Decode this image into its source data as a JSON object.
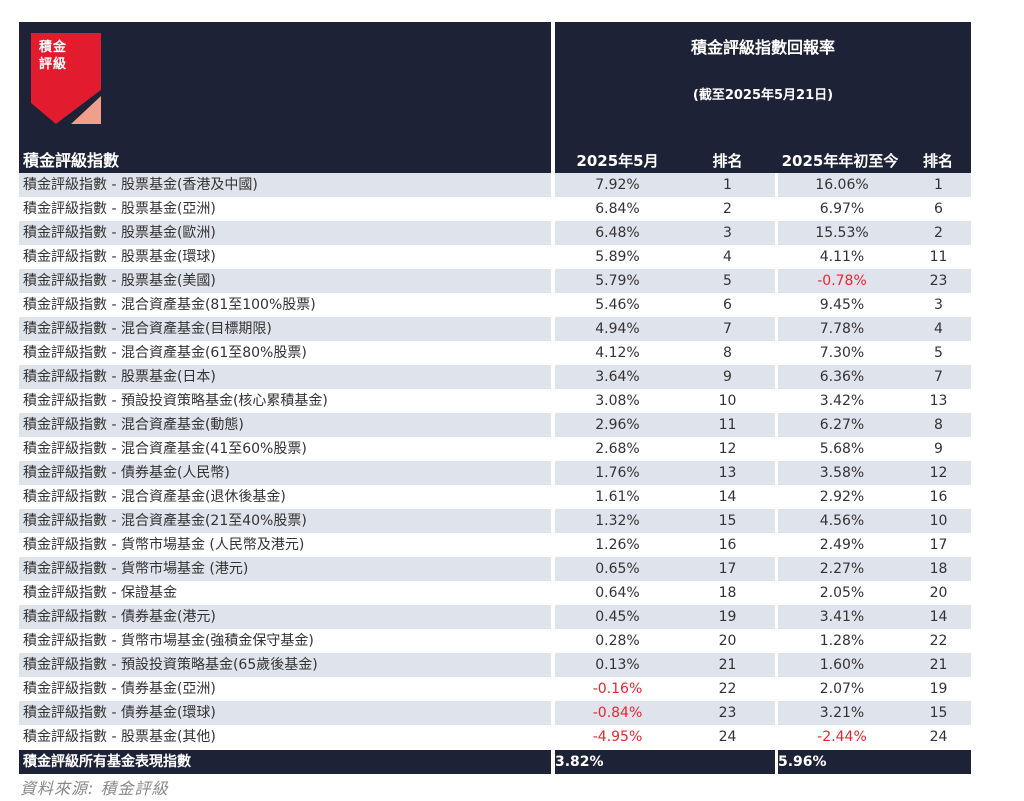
{
  "header": {
    "logo_text_line1": "積金",
    "logo_text_line2": "評級",
    "left_title": "積金評級指數",
    "right_title": "積金評級指數回報率",
    "right_subtitle": "(截至2025年5月21日)",
    "columns": [
      "2025年5月",
      "排名",
      "2025年年初至今",
      "排名"
    ]
  },
  "colors": {
    "header_bg": "#1e2236",
    "row_alt": "#dfe3ec",
    "negative": "#e8262f",
    "logo_red": "#e31b2f",
    "logo_salmon": "#f0a08a"
  },
  "rows": [
    {
      "name": "積金評級指數 - 股票基金(香港及中國)",
      "may": "7.92%",
      "may_rank": "1",
      "ytd": "16.06%",
      "ytd_rank": "1"
    },
    {
      "name": "積金評級指數 - 股票基金(亞洲)",
      "may": "6.84%",
      "may_rank": "2",
      "ytd": "6.97%",
      "ytd_rank": "6"
    },
    {
      "name": "積金評級指數 - 股票基金(歐洲)",
      "may": "6.48%",
      "may_rank": "3",
      "ytd": "15.53%",
      "ytd_rank": "2"
    },
    {
      "name": "積金評級指數 - 股票基金(環球)",
      "may": "5.89%",
      "may_rank": "4",
      "ytd": "4.11%",
      "ytd_rank": "11"
    },
    {
      "name": "積金評級指數 - 股票基金(美國)",
      "may": "5.79%",
      "may_rank": "5",
      "ytd": "-0.78%",
      "ytd_rank": "23"
    },
    {
      "name": "積金評級指數 - 混合資產基金(81至100%股票)",
      "may": "5.46%",
      "may_rank": "6",
      "ytd": "9.45%",
      "ytd_rank": "3"
    },
    {
      "name": "積金評級指數 - 混合資產基金(目標期限)",
      "may": "4.94%",
      "may_rank": "7",
      "ytd": "7.78%",
      "ytd_rank": "4"
    },
    {
      "name": "積金評級指數 - 混合資產基金(61至80%股票)",
      "may": "4.12%",
      "may_rank": "8",
      "ytd": "7.30%",
      "ytd_rank": "5"
    },
    {
      "name": "積金評級指數 - 股票基金(日本)",
      "may": "3.64%",
      "may_rank": "9",
      "ytd": "6.36%",
      "ytd_rank": "7"
    },
    {
      "name": "積金評級指數 - 預設投資策略基金(核心累積基金)",
      "may": "3.08%",
      "may_rank": "10",
      "ytd": "3.42%",
      "ytd_rank": "13"
    },
    {
      "name": "積金評級指數 - 混合資產基金(動態)",
      "may": "2.96%",
      "may_rank": "11",
      "ytd": "6.27%",
      "ytd_rank": "8"
    },
    {
      "name": "積金評級指數 - 混合資產基金(41至60%股票)",
      "may": "2.68%",
      "may_rank": "12",
      "ytd": "5.68%",
      "ytd_rank": "9"
    },
    {
      "name": "積金評級指數 - 債券基金(人民幣)",
      "may": "1.76%",
      "may_rank": "13",
      "ytd": "3.58%",
      "ytd_rank": "12"
    },
    {
      "name": "積金評級指數 - 混合資產基金(退休後基金)",
      "may": "1.61%",
      "may_rank": "14",
      "ytd": "2.92%",
      "ytd_rank": "16"
    },
    {
      "name": "積金評級指數 - 混合資產基金(21至40%股票)",
      "may": "1.32%",
      "may_rank": "15",
      "ytd": "4.56%",
      "ytd_rank": "10"
    },
    {
      "name": "積金評級指數 - 貨幣市場基金 (人民幣及港元)",
      "may": "1.26%",
      "may_rank": "16",
      "ytd": "2.49%",
      "ytd_rank": "17"
    },
    {
      "name": "積金評級指數 - 貨幣市場基金 (港元)",
      "may": "0.65%",
      "may_rank": "17",
      "ytd": "2.27%",
      "ytd_rank": "18"
    },
    {
      "name": "積金評級指數 - 保證基金",
      "may": "0.64%",
      "may_rank": "18",
      "ytd": "2.05%",
      "ytd_rank": "20"
    },
    {
      "name": "積金評級指數 - 債券基金(港元)",
      "may": "0.45%",
      "may_rank": "19",
      "ytd": "3.41%",
      "ytd_rank": "14"
    },
    {
      "name": "積金評級指數 - 貨幣市場基金(強積金保守基金)",
      "may": "0.28%",
      "may_rank": "20",
      "ytd": "1.28%",
      "ytd_rank": "22"
    },
    {
      "name": "積金評級指數 - 預設投資策略基金(65歲後基金)",
      "may": "0.13%",
      "may_rank": "21",
      "ytd": "1.60%",
      "ytd_rank": "21"
    },
    {
      "name": "積金評級指數 - 債券基金(亞洲)",
      "may": "-0.16%",
      "may_rank": "22",
      "ytd": "2.07%",
      "ytd_rank": "19"
    },
    {
      "name": "積金評級指數 - 債券基金(環球)",
      "may": "-0.84%",
      "may_rank": "23",
      "ytd": "3.21%",
      "ytd_rank": "15"
    },
    {
      "name": "積金評級指數 - 股票基金(其他)",
      "may": "-4.95%",
      "may_rank": "24",
      "ytd": "-2.44%",
      "ytd_rank": "24"
    }
  ],
  "total": {
    "name": "積金評級所有基金表現指數",
    "may": "3.82%",
    "ytd": "5.96%"
  },
  "source": "資料來源:  積金評級"
}
